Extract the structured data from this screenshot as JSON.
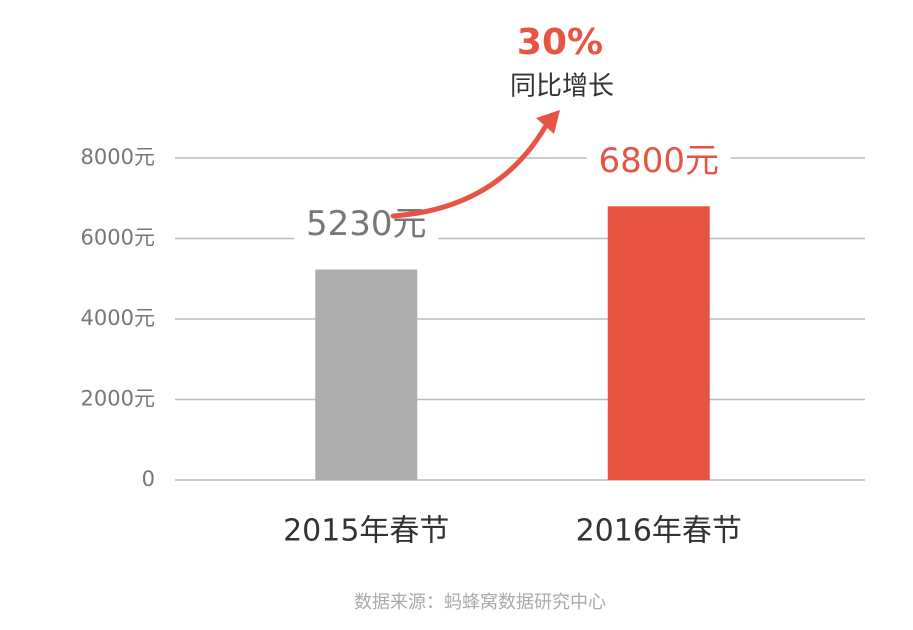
{
  "chart_data": {
    "type": "bar",
    "categories": [
      "2015年春节",
      "2016年春节"
    ],
    "values": [
      5230,
      6800
    ],
    "value_labels": [
      "5230元",
      "6800元"
    ],
    "colors": [
      "#adadad",
      "#e85444"
    ],
    "ylim": [
      0,
      8000
    ],
    "yticks": [
      0,
      {
        "value": 2000,
        "label": "2000元"
      },
      {
        "value": 4000,
        "label": "4000元"
      },
      {
        "value": 6000,
        "label": "6000元"
      },
      {
        "value": 8000,
        "label": "8000元"
      }
    ],
    "grid": true,
    "annotation": {
      "value": "30%",
      "label": "同比增长"
    },
    "source": "数据来源：蚂蜂窝数据研究中心"
  }
}
